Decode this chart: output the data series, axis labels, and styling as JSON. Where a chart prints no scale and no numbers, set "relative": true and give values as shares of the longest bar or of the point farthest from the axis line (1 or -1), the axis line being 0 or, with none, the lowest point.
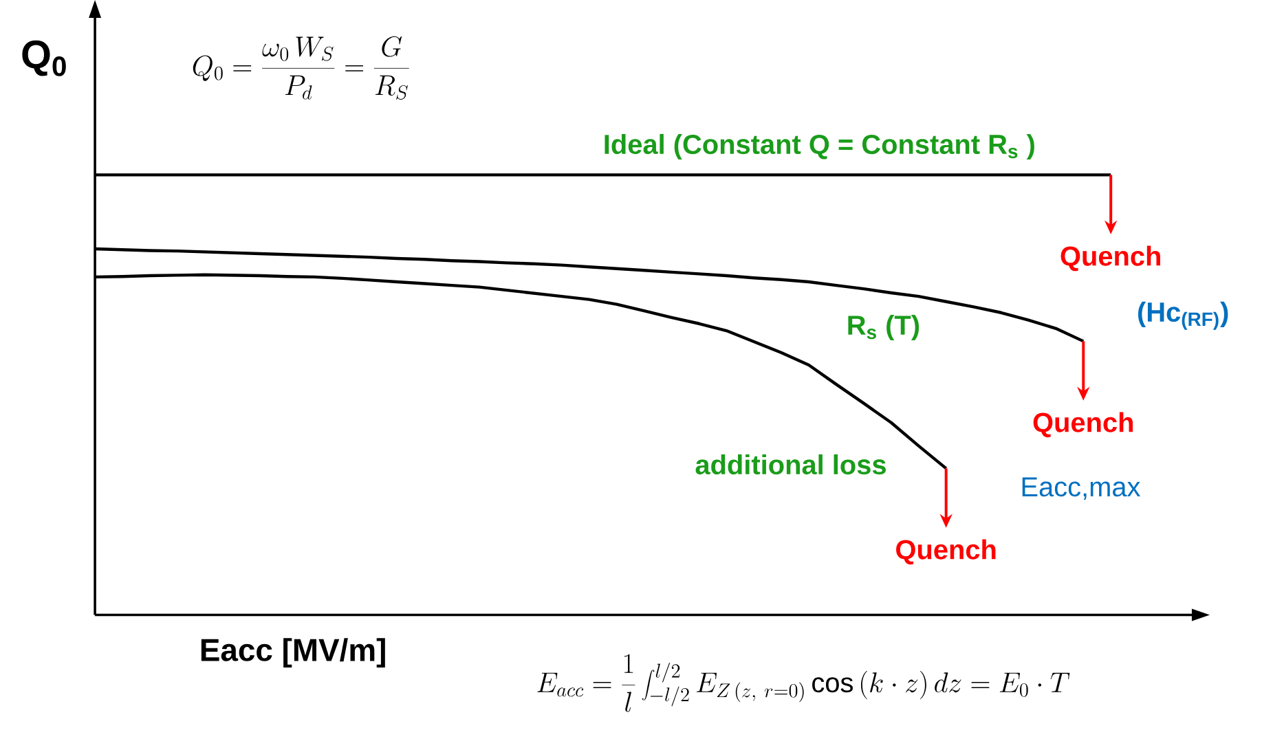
{
  "chart_data": {
    "type": "line",
    "relative": true,
    "xlabel": "Eacc [MV/m]",
    "ylabel": "Q$_{0}$",
    "categories": [
      null,
      null,
      null,
      null,
      null,
      null,
      null,
      null,
      null,
      null,
      null,
      null,
      null,
      null,
      null,
      null,
      null,
      null,
      null,
      null,
      null,
      null,
      null,
      null,
      null,
      null,
      null,
      null,
      null,
      null,
      null,
      null,
      null,
      null,
      null,
      null,
      null,
      null,
      null,
      null,
      null
    ],
    "series": [
      {
        "name": "Ideal (Constant Q = Constant R$_{s}$ )",
        "color": "#000000",
        "values": [
          1.0,
          1.0,
          1.0,
          1.0,
          1.0,
          1.0,
          1.0,
          1.0,
          1.0,
          1.0,
          1.0,
          1.0,
          1.0,
          1.0,
          1.0,
          1.0,
          1.0,
          1.0,
          1.0,
          1.0,
          1.0,
          1.0,
          1.0,
          1.0,
          1.0,
          1.0,
          1.0,
          1.0,
          1.0,
          1.0,
          1.0,
          1.0,
          1.0,
          1.0,
          1.0,
          1.0,
          1.0,
          1.0,
          null,
          null,
          null
        ]
      },
      {
        "name": "R$_{s}$ (T)",
        "color": "#000000",
        "values": [
          0.832,
          0.83,
          0.828,
          0.827,
          0.825,
          0.823,
          0.821,
          0.819,
          0.817,
          0.815,
          0.813,
          0.81,
          0.808,
          0.805,
          0.803,
          0.8,
          0.798,
          0.795,
          0.791,
          0.787,
          0.783,
          0.779,
          0.775,
          0.771,
          0.766,
          0.762,
          0.757,
          0.749,
          0.741,
          0.732,
          0.724,
          0.712,
          0.7,
          0.687,
          0.67,
          0.651,
          0.622,
          null,
          null,
          null,
          null
        ]
      },
      {
        "name": "additional loss",
        "color": "#000000",
        "values": [
          0.768,
          0.769,
          0.771,
          0.772,
          0.773,
          0.772,
          0.771,
          0.769,
          0.768,
          0.765,
          0.761,
          0.757,
          0.753,
          0.749,
          0.745,
          0.738,
          0.731,
          0.724,
          0.717,
          0.706,
          0.691,
          0.676,
          0.662,
          0.646,
          0.621,
          0.596,
          0.568,
          0.524,
          0.481,
          0.437,
          0.384,
          0.333,
          null,
          null,
          null,
          null,
          null,
          null,
          null,
          null,
          null
        ]
      }
    ],
    "annotations": [
      "Q_0=\\frac{\\omega_0\\, W_S}{P_d}=\\frac{G}{R_S}",
      "E_{acc}=\\frac{1}{l}\\int_{-l/2}^{l/2}E_{Z\\,(z,\\ r=0)}\\cos\\left(k\\cdot z\\right)dz=E_0\\cdot T",
      "Quench",
      "(Hc$_{(RF)}$)",
      "Quench",
      "Eacc,max",
      "Quench"
    ]
  }
}
